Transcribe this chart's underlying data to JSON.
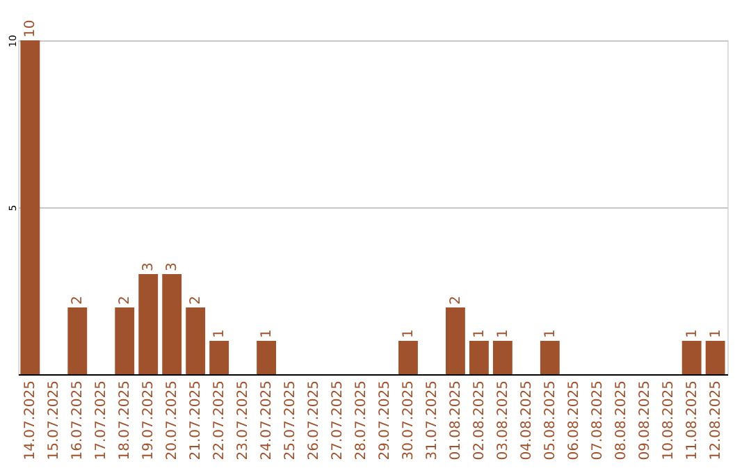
{
  "chart_data": {
    "type": "bar",
    "categories": [
      "14.07.2025",
      "15.07.2025",
      "16.07.2025",
      "17.07.2025",
      "18.07.2025",
      "19.07.2025",
      "20.07.2025",
      "21.07.2025",
      "22.07.2025",
      "23.07.2025",
      "24.07.2025",
      "25.07.2025",
      "26.07.2025",
      "27.07.2025",
      "28.07.2025",
      "29.07.2025",
      "30.07.2025",
      "31.07.2025",
      "01.08.2025",
      "02.08.2025",
      "03.08.2025",
      "04.08.2025",
      "05.08.2025",
      "06.08.2025",
      "07.08.2025",
      "08.08.2025",
      "09.08.2025",
      "10.08.2025",
      "11.08.2025",
      "12.08.2025"
    ],
    "values": [
      10,
      0,
      2,
      0,
      2,
      3,
      3,
      2,
      1,
      0,
      1,
      0,
      0,
      0,
      0,
      0,
      1,
      0,
      2,
      1,
      1,
      0,
      1,
      0,
      0,
      0,
      0,
      0,
      1,
      1
    ],
    "value_labels": [
      "10",
      null,
      "2",
      null,
      "2",
      "3",
      "3",
      "2",
      "1",
      null,
      "1",
      null,
      null,
      null,
      null,
      null,
      "1",
      null,
      "2",
      "1",
      "1",
      null,
      "1",
      null,
      null,
      null,
      null,
      null,
      "1",
      "1"
    ],
    "color": "#a0522d",
    "ylim": [
      0,
      10
    ],
    "yticks": [
      5,
      10
    ],
    "grid": "y"
  }
}
